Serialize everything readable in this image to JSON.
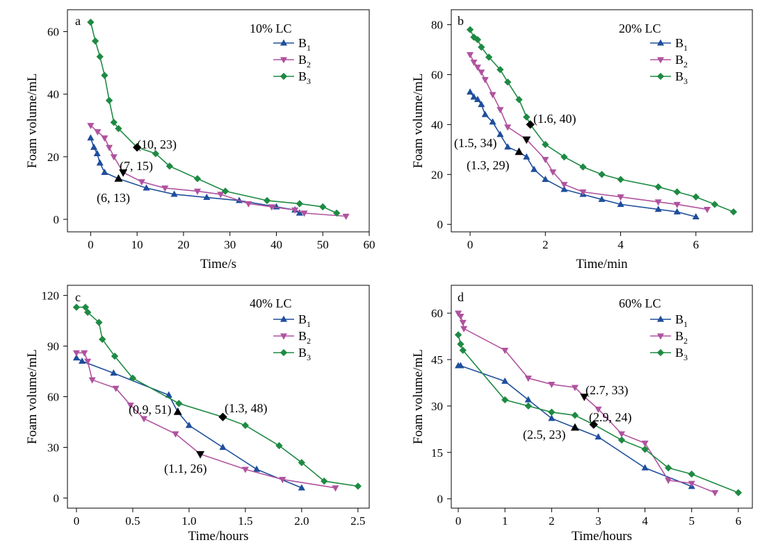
{
  "chart_data": [
    {
      "type": "line",
      "panel_label": "a",
      "condition_label": "10% LC",
      "xlabel": "Time/s",
      "ylabel": "Foam volume/mL",
      "xlim": [
        -5,
        60
      ],
      "ylim": [
        -4,
        67
      ],
      "xticks": [
        0,
        10,
        20,
        30,
        40,
        50,
        60
      ],
      "yticks": [
        0,
        20,
        40,
        60
      ],
      "legend_position": "top-right",
      "series": [
        {
          "name": "B",
          "name_sub": "1",
          "color": "#1f4e9c",
          "marker": "triangle-up",
          "x": [
            0,
            0.7,
            1.4,
            2,
            3,
            6,
            12,
            18,
            25,
            32,
            40,
            44,
            45
          ],
          "y": [
            26,
            23,
            21,
            18,
            15,
            13,
            10,
            8,
            7,
            6,
            4,
            3,
            2
          ]
        },
        {
          "name": "B",
          "name_sub": "2",
          "color": "#b0529f",
          "marker": "triangle-down",
          "x": [
            0,
            1.5,
            3,
            4,
            5,
            7,
            11,
            16,
            23,
            28,
            34,
            39,
            44,
            46,
            55
          ],
          "y": [
            30,
            28,
            26,
            23,
            20,
            15,
            12,
            10,
            9,
            8,
            5,
            4,
            3,
            2,
            1
          ]
        },
        {
          "name": "B",
          "name_sub": "3",
          "color": "#1e8a43",
          "marker": "diamond",
          "x": [
            0,
            1,
            2,
            3,
            4,
            5,
            6,
            10,
            14,
            17,
            23,
            29,
            38,
            45,
            50,
            53
          ],
          "y": [
            63,
            57,
            52,
            46,
            38,
            31,
            29,
            23,
            21,
            17,
            13,
            9,
            6,
            5,
            4,
            2
          ]
        }
      ],
      "annotations": [
        {
          "text": "(10, 23)",
          "x": 10,
          "y": 23,
          "marker": "diamond"
        },
        {
          "text": "(7, 15)",
          "x": 7,
          "y": 15,
          "marker": "triangle-down"
        },
        {
          "text": "(6, 13)",
          "x": 6,
          "y": 13,
          "marker": "triangle-up"
        }
      ]
    },
    {
      "type": "line",
      "panel_label": "b",
      "condition_label": "20% LC",
      "xlabel": "Time/min",
      "ylabel": "Foam volume/mL",
      "xlim": [
        -0.5,
        7.5
      ],
      "ylim": [
        -3,
        86
      ],
      "xticks": [
        0,
        2,
        4,
        6
      ],
      "yticks": [
        0,
        20,
        40,
        60,
        80
      ],
      "legend_position": "top-right",
      "series": [
        {
          "name": "B",
          "name_sub": "1",
          "color": "#1f4e9c",
          "marker": "triangle-up",
          "x": [
            0,
            0.1,
            0.2,
            0.3,
            0.4,
            0.6,
            0.8,
            1,
            1.3,
            1.5,
            1.7,
            2,
            2.5,
            3,
            3.5,
            4,
            5,
            5.5,
            6
          ],
          "y": [
            53,
            51,
            50,
            48,
            44,
            41,
            36,
            31,
            29,
            27,
            22,
            18,
            14,
            12,
            10,
            8,
            6,
            5,
            3
          ]
        },
        {
          "name": "B",
          "name_sub": "2",
          "color": "#b0529f",
          "marker": "triangle-down",
          "x": [
            0,
            0.1,
            0.2,
            0.3,
            0.4,
            0.6,
            0.8,
            1,
            1.5,
            2,
            2.2,
            2.5,
            3,
            4,
            5,
            5.5,
            6.3
          ],
          "y": [
            68,
            65,
            63,
            61,
            58,
            52,
            46,
            39,
            34,
            26,
            21,
            16,
            13,
            11,
            9,
            8,
            6
          ]
        },
        {
          "name": "B",
          "name_sub": "3",
          "color": "#1e8a43",
          "marker": "diamond",
          "x": [
            0,
            0.1,
            0.2,
            0.3,
            0.5,
            0.8,
            1,
            1.3,
            1.5,
            1.6,
            2,
            2.5,
            3,
            3.5,
            4,
            5,
            5.5,
            6,
            6.5,
            7
          ],
          "y": [
            78,
            75,
            74,
            71,
            67,
            62,
            57,
            50,
            43,
            40,
            32,
            27,
            23,
            20,
            18,
            15,
            13,
            11,
            8,
            5
          ]
        }
      ],
      "annotations": [
        {
          "text": "(1.6, 40)",
          "x": 1.6,
          "y": 40,
          "marker": "diamond"
        },
        {
          "text": "(1.5, 34)",
          "x": 1.5,
          "y": 34,
          "marker": "triangle-down"
        },
        {
          "text": "(1.3, 29)",
          "x": 1.3,
          "y": 29,
          "marker": "triangle-up"
        }
      ]
    },
    {
      "type": "line",
      "panel_label": "c",
      "condition_label": "40% LC",
      "xlabel": "Time/hours",
      "ylabel": "Foam volume/mL",
      "xlim": [
        -0.08,
        2.6
      ],
      "ylim": [
        -6,
        126
      ],
      "xticks": [
        0,
        0.5,
        1.0,
        1.5,
        2.0,
        2.5
      ],
      "yticks": [
        0,
        30,
        60,
        90,
        120
      ],
      "legend_position": "top-right",
      "series": [
        {
          "name": "B",
          "name_sub": "1",
          "color": "#1f4e9c",
          "marker": "triangle-up",
          "x": [
            0,
            0.05,
            0.33,
            0.82,
            0.9,
            1.0,
            1.3,
            1.6,
            2.0
          ],
          "y": [
            83,
            81,
            74,
            61,
            51,
            43,
            30,
            17,
            6
          ]
        },
        {
          "name": "B",
          "name_sub": "2",
          "color": "#b0529f",
          "marker": "triangle-down",
          "x": [
            0,
            0.07,
            0.1,
            0.14,
            0.35,
            0.48,
            0.6,
            0.88,
            1.1,
            1.5,
            1.83,
            2.3
          ],
          "y": [
            86,
            86,
            81,
            70,
            65,
            55,
            47,
            38,
            26,
            17,
            11,
            6
          ]
        },
        {
          "name": "B",
          "name_sub": "3",
          "color": "#1e8a43",
          "marker": "diamond",
          "x": [
            0,
            0.08,
            0.1,
            0.2,
            0.23,
            0.34,
            0.5,
            0.91,
            1.3,
            1.5,
            1.8,
            2.0,
            2.2,
            2.5
          ],
          "y": [
            113,
            113,
            110,
            104,
            94,
            84,
            71,
            56,
            48,
            43,
            31,
            21,
            10,
            7
          ]
        }
      ],
      "annotations": [
        {
          "text": "(0.9, 51)",
          "x": 0.9,
          "y": 51,
          "marker": "triangle-up"
        },
        {
          "text": "(1.3, 48)",
          "x": 1.3,
          "y": 48,
          "marker": "diamond"
        },
        {
          "text": "(1.1, 26)",
          "x": 1.1,
          "y": 26,
          "marker": "triangle-down"
        }
      ]
    },
    {
      "type": "line",
      "panel_label": "d",
      "condition_label": "60% LC",
      "xlabel": "Time/hours",
      "ylabel": "Foam volume/mL",
      "xlim": [
        -0.15,
        6.3
      ],
      "ylim": [
        -3,
        69
      ],
      "xticks": [
        0,
        1,
        2,
        3,
        4,
        5,
        6
      ],
      "yticks": [
        0,
        15,
        30,
        45,
        60
      ],
      "legend_position": "top-right",
      "series": [
        {
          "name": "B",
          "name_sub": "1",
          "color": "#1f4e9c",
          "marker": "triangle-up",
          "x": [
            0,
            0.05,
            1,
            1.5,
            2,
            2.5,
            3,
            4,
            5
          ],
          "y": [
            43,
            43,
            38,
            32,
            26,
            23,
            20,
            10,
            4
          ]
        },
        {
          "name": "B",
          "name_sub": "2",
          "color": "#b0529f",
          "marker": "triangle-down",
          "x": [
            0,
            0.05,
            0.1,
            0.12,
            1,
            1.5,
            2,
            2.5,
            2.7,
            3,
            3.5,
            4,
            4.5,
            5,
            5.5
          ],
          "y": [
            60,
            59,
            57,
            55,
            48,
            39,
            37,
            36,
            33,
            29,
            21,
            18,
            6,
            5,
            2
          ]
        },
        {
          "name": "B",
          "name_sub": "3",
          "color": "#1e8a43",
          "marker": "diamond",
          "x": [
            0,
            0.05,
            0.1,
            1,
            1.5,
            2,
            2.5,
            2.9,
            3.5,
            4,
            4.5,
            5,
            6
          ],
          "y": [
            53,
            50,
            48,
            32,
            30,
            28,
            27,
            24,
            19,
            16,
            10,
            8,
            2
          ]
        }
      ],
      "annotations": [
        {
          "text": "(2.7, 33)",
          "x": 2.7,
          "y": 33,
          "marker": "triangle-down"
        },
        {
          "text": "(2.9, 24)",
          "x": 2.9,
          "y": 24,
          "marker": "diamond"
        },
        {
          "text": "(2.5, 23)",
          "x": 2.5,
          "y": 23,
          "marker": "triangle-up"
        }
      ]
    }
  ]
}
